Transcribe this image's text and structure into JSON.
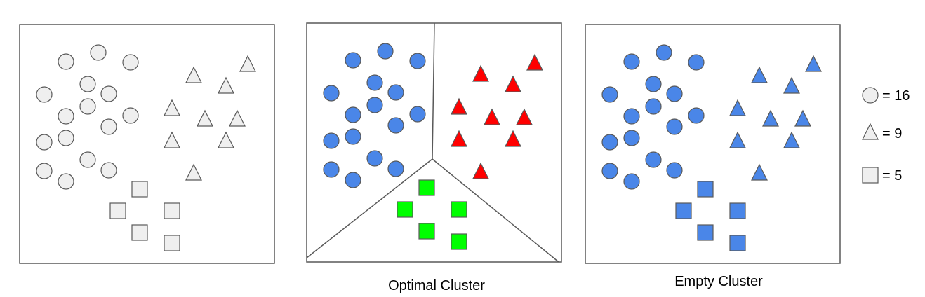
{
  "colors": {
    "unassigned_fill": "#efefef",
    "cluster_blue": "#4a86e8",
    "cluster_red": "#ff0000",
    "cluster_green": "#00ff00",
    "outline": "#595959"
  },
  "panels": [
    {
      "name": "unclustered",
      "caption": "",
      "assignment": {
        "circle": "unassigned_fill",
        "triangle": "unassigned_fill",
        "square": "unassigned_fill"
      },
      "dividers": false
    },
    {
      "name": "optimal",
      "caption": "Optimal Cluster",
      "assignment": {
        "circle": "cluster_blue",
        "triangle": "cluster_red",
        "square": "cluster_green"
      },
      "dividers": true
    },
    {
      "name": "empty",
      "caption": "Empty Cluster",
      "assignment": {
        "circle": "cluster_blue",
        "triangle": "cluster_blue",
        "square": "cluster_blue"
      },
      "dividers": false
    }
  ],
  "legend": [
    {
      "shape": "circle",
      "label": "= 16"
    },
    {
      "shape": "triangle",
      "label": "= 9"
    },
    {
      "shape": "square",
      "label": "= 5"
    }
  ]
}
